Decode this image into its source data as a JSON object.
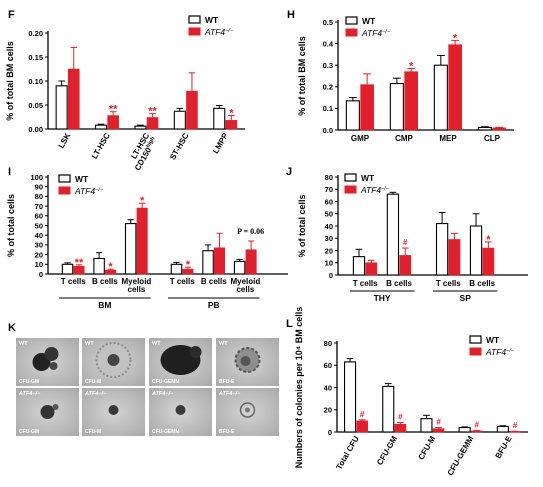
{
  "colors": {
    "wt_fill": "#ffffff",
    "ko_fill": "#e0202b",
    "error_bar_ko": "#e0202b",
    "axis": "#000000",
    "sig": "#e0202b"
  },
  "legend": {
    "wt": "WT",
    "ko": "ATF4",
    "ko_superscript": "−/−"
  },
  "chart_data": [
    {
      "panel": "F",
      "type": "bar",
      "ylabel": "% of total BM cells",
      "ylim": [
        0,
        0.2
      ],
      "yticks": [
        "0.00",
        "0.05",
        "0.10",
        "0.15",
        "0.20"
      ],
      "categories": [
        "LSK",
        "LT-HSC",
        "LT-HSC CD150high",
        "ST-HSC",
        "LMPP"
      ],
      "series": [
        {
          "name": "WT",
          "values": [
            0.09,
            0.008,
            0.006,
            0.037,
            0.043
          ],
          "errors": [
            0.01,
            0.002,
            0.002,
            0.006,
            0.006
          ]
        },
        {
          "name": "ATF4−/−",
          "values": [
            0.125,
            0.028,
            0.024,
            0.079,
            0.018
          ],
          "errors": [
            0.045,
            0.008,
            0.008,
            0.038,
            0.01
          ]
        }
      ],
      "significance": [
        "",
        "**",
        "**",
        "",
        "*"
      ],
      "legend_position": "top-right"
    },
    {
      "panel": "H",
      "type": "bar",
      "ylabel": "% of total BM cells",
      "ylim": [
        0,
        0.5
      ],
      "yticks": [
        "0.0",
        "0.1",
        "0.2",
        "0.3",
        "0.4",
        "0.5"
      ],
      "categories": [
        "GMP",
        "CMP",
        "MEP",
        "CLP"
      ],
      "series": [
        {
          "name": "WT",
          "values": [
            0.135,
            0.215,
            0.3,
            0.012
          ],
          "errors": [
            0.015,
            0.025,
            0.045,
            0.003
          ]
        },
        {
          "name": "ATF4−/−",
          "values": [
            0.21,
            0.27,
            0.395,
            0.01
          ],
          "errors": [
            0.05,
            0.015,
            0.02,
            0.002
          ]
        }
      ],
      "significance": [
        "",
        "*",
        "*",
        ""
      ],
      "legend_position": "top-left"
    },
    {
      "panel": "I",
      "type": "bar",
      "ylabel": "% of total cells",
      "ylim": [
        0,
        100
      ],
      "yticks": [
        "0",
        "10",
        "20",
        "30",
        "40",
        "50",
        "60",
        "70",
        "80",
        "90",
        "100"
      ],
      "categories": [
        "T cells",
        "B cells",
        "Myeloid cells",
        "T cells",
        "B cells",
        "Myeloid cells"
      ],
      "groups": [
        {
          "label": "BM",
          "span": [
            0,
            2
          ]
        },
        {
          "label": "PB",
          "span": [
            3,
            5
          ]
        }
      ],
      "series": [
        {
          "name": "WT",
          "values": [
            10,
            16,
            52,
            10,
            24,
            13
          ],
          "errors": [
            1.5,
            6,
            4,
            2,
            6,
            2
          ]
        },
        {
          "name": "ATF4−/−",
          "values": [
            8,
            4,
            68,
            5,
            27,
            25
          ],
          "errors": [
            1.5,
            1,
            5,
            2,
            15,
            9
          ]
        }
      ],
      "significance": [
        "**",
        "*",
        "*",
        "*",
        "",
        "P = 0.06"
      ],
      "legend_position": "top-left"
    },
    {
      "panel": "J",
      "type": "bar",
      "ylabel": "% of total cells",
      "ylim": [
        0,
        80
      ],
      "yticks": [
        "0",
        "10",
        "20",
        "30",
        "40",
        "50",
        "60",
        "70",
        "80"
      ],
      "categories": [
        "T cells",
        "B cells",
        "T cells",
        "B cells"
      ],
      "groups": [
        {
          "label": "THY",
          "span": [
            0,
            1
          ]
        },
        {
          "label": "SP",
          "span": [
            2,
            3
          ]
        }
      ],
      "series": [
        {
          "name": "WT",
          "values": [
            15,
            66,
            42,
            40
          ],
          "errors": [
            6,
            1.5,
            9,
            10
          ]
        },
        {
          "name": "ATF4−/−",
          "values": [
            10,
            16,
            29,
            22
          ],
          "errors": [
            2,
            6,
            5,
            5
          ]
        }
      ],
      "significance": [
        "",
        "#",
        "",
        "*"
      ],
      "legend_position": "top-left"
    },
    {
      "panel": "L",
      "type": "bar",
      "ylabel": "Numbers of colonies per 10⁴ BM cells",
      "ylim": [
        0,
        80
      ],
      "yticks": [
        "0",
        "20",
        "40",
        "60",
        "80"
      ],
      "categories": [
        "Total CFU",
        "CFU-GM",
        "CFU-M",
        "CFU-GEMM",
        "BFU-E"
      ],
      "series": [
        {
          "name": "WT",
          "values": [
            63,
            41,
            12,
            4,
            5
          ],
          "errors": [
            3,
            2.5,
            3,
            0.6,
            0.6
          ]
        },
        {
          "name": "ATF4−/−",
          "values": [
            10,
            7,
            3,
            1,
            0.5
          ],
          "errors": [
            1,
            1.5,
            1,
            0.3,
            0.2
          ]
        }
      ],
      "significance": [
        "#",
        "#",
        "#",
        "#",
        "#"
      ],
      "legend_position": "top-right"
    }
  ],
  "panel_k": {
    "letter": "K",
    "images": [
      {
        "genotype": "WT",
        "caption": "CFU-GM",
        "style": "ball"
      },
      {
        "genotype": "WT",
        "caption": "CFU-M",
        "style": "halo"
      },
      {
        "genotype": "WT",
        "caption": "CFU-GEMM",
        "style": "big"
      },
      {
        "genotype": "WT",
        "caption": "BFU-E",
        "style": "cluster"
      },
      {
        "genotype": "ATF4−/−",
        "caption": "CFU-GM",
        "style": "small"
      },
      {
        "genotype": "ATF4−/−",
        "caption": "CFU-M",
        "style": "dot"
      },
      {
        "genotype": "ATF4−/−",
        "caption": "CFU-GEMM",
        "style": "dot"
      },
      {
        "genotype": "ATF4−/−",
        "caption": "BFU-E",
        "style": "ring"
      }
    ]
  }
}
